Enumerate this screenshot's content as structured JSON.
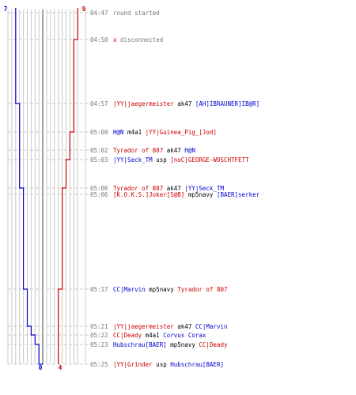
{
  "chart_data": {
    "type": "line",
    "title": "",
    "colors": {
      "team_blue": "#0000cc",
      "team_red": "#cc0000",
      "time_text": "#777777",
      "grid": "#c8c8c8",
      "center_line": "#888888"
    },
    "count_labels": {
      "blue_start": "7",
      "red_start": "9",
      "blue_end": "0",
      "red_end": "4"
    },
    "count_axis": {
      "max_per_side": 9
    },
    "series": [
      {
        "team": "blue",
        "steps": [
          {
            "time": "04:47",
            "count": 7
          },
          {
            "time": "04:57",
            "count": 6
          },
          {
            "time": "05:06",
            "count": 5
          },
          {
            "time": "05:17",
            "count": 4
          },
          {
            "time": "05:21",
            "count": 3
          },
          {
            "time": "05:22",
            "count": 2
          },
          {
            "time": "05:23",
            "count": 1
          },
          {
            "time": "05:25",
            "count": 0
          }
        ]
      },
      {
        "team": "red",
        "steps": [
          {
            "time": "04:47",
            "count": 9
          },
          {
            "time": "04:50",
            "count": 8
          },
          {
            "time": "05:00",
            "count": 7
          },
          {
            "time": "05:03",
            "count": 6
          },
          {
            "time": "05:06",
            "count": 5
          },
          {
            "time": "05:17",
            "count": 4
          }
        ]
      }
    ],
    "events": [
      {
        "time": "04:47",
        "parts": [
          {
            "text": "round started",
            "color": "gray"
          }
        ]
      },
      {
        "time": "04:50",
        "parts": [
          {
            "text": "x",
            "color": "red"
          },
          {
            "text": "disconnected",
            "color": "gray"
          }
        ]
      },
      {
        "time": "04:57",
        "parts": [
          {
            "text": "|YY|jaegermeister",
            "color": "red"
          },
          {
            "text": "ak47",
            "color": "black"
          },
          {
            "text": "[AH]IBRAUNER]IB@R]",
            "color": "blue"
          }
        ]
      },
      {
        "time": "05:00",
        "parts": [
          {
            "text": "H@N",
            "color": "blue"
          },
          {
            "text": "m4a1",
            "color": "black"
          },
          {
            "text": "|YY|Guinea_Pig_[Jod]",
            "color": "red"
          }
        ]
      },
      {
        "time": "05:02",
        "parts": [
          {
            "text": "Tyrador of 807",
            "color": "red"
          },
          {
            "text": "ak47",
            "color": "black"
          },
          {
            "text": "H@N",
            "color": "blue"
          }
        ]
      },
      {
        "time": "05:03",
        "parts": [
          {
            "text": "|YY|Seck_TM",
            "color": "blue"
          },
          {
            "text": "usp",
            "color": "black"
          },
          {
            "text": "[noC]GEORGE-WOSCHTFETT",
            "color": "red"
          }
        ]
      },
      {
        "time": "05:06",
        "parts": [
          {
            "text": "Tyrador of 807",
            "color": "red"
          },
          {
            "text": "ak47",
            "color": "black"
          },
          {
            "text": "|YY|Seck_TM",
            "color": "blue"
          }
        ]
      },
      {
        "time": "05:06",
        "parts": [
          {
            "text": "[K.O.K.S.]Joker[S@B]",
            "color": "red"
          },
          {
            "text": "mp5navy",
            "color": "black"
          },
          {
            "text": "[BAER]serker",
            "color": "blue"
          }
        ]
      },
      {
        "time": "05:17",
        "parts": [
          {
            "text": "CC|Marvin",
            "color": "blue"
          },
          {
            "text": "mp5navy",
            "color": "black"
          },
          {
            "text": "Tyrador of 807",
            "color": "red"
          }
        ]
      },
      {
        "time": "05:21",
        "parts": [
          {
            "text": "|YY|jaegermeister",
            "color": "red"
          },
          {
            "text": "ak47",
            "color": "black"
          },
          {
            "text": "CC|Marvin",
            "color": "blue"
          }
        ]
      },
      {
        "time": "05:22",
        "parts": [
          {
            "text": "CC|Deady",
            "color": "red"
          },
          {
            "text": "m4a1",
            "color": "black"
          },
          {
            "text": "Corvus Corax",
            "color": "blue"
          }
        ]
      },
      {
        "time": "05:23",
        "parts": [
          {
            "text": "Hubschrau[BAER]",
            "color": "blue"
          },
          {
            "text": "mp5navy",
            "color": "black"
          },
          {
            "text": "CC|Deady",
            "color": "red"
          }
        ]
      },
      {
        "time": "05:25",
        "parts": [
          {
            "text": "|YY|Grinder",
            "color": "red"
          },
          {
            "text": "usp",
            "color": "black"
          },
          {
            "text": "Hubschrau[BAER]",
            "color": "blue"
          }
        ]
      }
    ]
  }
}
